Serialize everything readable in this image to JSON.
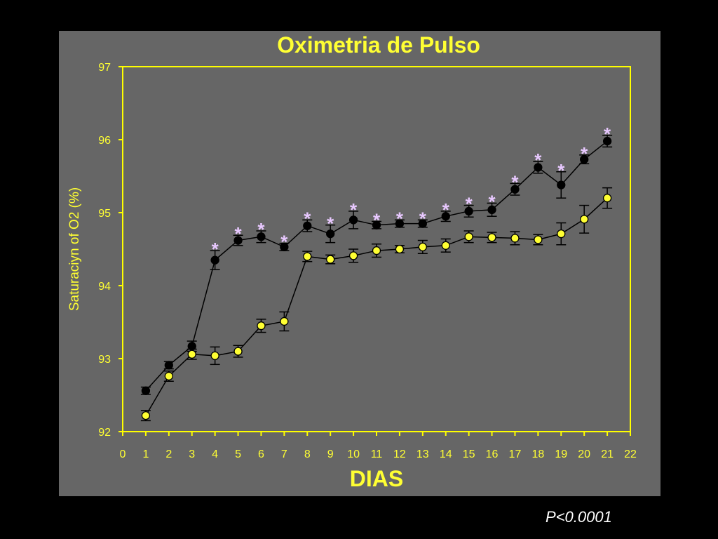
{
  "chart_data": {
    "type": "line",
    "title": "Oximetria de Pulso",
    "xlabel": "DIAS",
    "ylabel": "Saturaciyn of O2 (%)",
    "xlim": [
      0,
      22
    ],
    "ylim": [
      92,
      97
    ],
    "x_ticks": [
      "0",
      "1",
      "2",
      "3",
      "4",
      "5",
      "6",
      "7",
      "8",
      "9",
      "10",
      "11",
      "12",
      "13",
      "14",
      "15",
      "16",
      "17",
      "18",
      "19",
      "20",
      "21",
      "22"
    ],
    "y_ticks": [
      "92",
      "93",
      "94",
      "95",
      "96",
      "97"
    ],
    "grid": false,
    "legend": "none",
    "colors": {
      "text": "#ffff33",
      "axis": "#ffff00",
      "series_black": "#000000",
      "series_yellow": "#ffff33",
      "asterisk": "#e8c8ff",
      "panel": "#666666"
    },
    "series": [
      {
        "x": [
          1,
          2,
          3,
          4,
          5,
          6,
          7,
          8,
          9,
          10,
          11,
          12,
          13,
          14,
          15,
          16,
          17,
          18,
          19,
          20,
          21
        ],
        "values": [
          92.56,
          92.91,
          93.17,
          94.35,
          94.62,
          94.67,
          94.53,
          94.82,
          94.71,
          94.9,
          94.83,
          94.85,
          94.85,
          94.95,
          95.02,
          95.04,
          95.32,
          95.62,
          95.38,
          95.73,
          95.98
        ],
        "error": [
          0.05,
          0.05,
          0.07,
          0.13,
          0.07,
          0.08,
          0.05,
          0.08,
          0.12,
          0.12,
          0.05,
          0.05,
          0.05,
          0.07,
          0.08,
          0.09,
          0.08,
          0.08,
          0.18,
          0.06,
          0.08
        ],
        "marker_color": "#000000"
      },
      {
        "x": [
          1,
          2,
          3,
          4,
          5,
          6,
          7,
          8,
          9,
          10,
          11,
          12,
          13,
          14,
          15,
          16,
          17,
          18,
          19,
          20,
          21
        ],
        "values": [
          92.22,
          92.76,
          93.06,
          93.04,
          93.1,
          93.45,
          93.51,
          94.4,
          94.36,
          94.41,
          94.48,
          94.5,
          94.53,
          94.55,
          94.67,
          94.66,
          94.65,
          94.63,
          94.71,
          94.91,
          95.2
        ],
        "error": [
          0.07,
          0.07,
          0.07,
          0.12,
          0.08,
          0.09,
          0.13,
          0.07,
          0.06,
          0.09,
          0.09,
          0.05,
          0.09,
          0.09,
          0.08,
          0.07,
          0.09,
          0.07,
          0.15,
          0.19,
          0.14
        ],
        "marker_color": "#ffff33"
      }
    ],
    "annotations": {
      "symbol": "*",
      "x": [
        4,
        5,
        6,
        7,
        8,
        9,
        10,
        11,
        12,
        13,
        14,
        15,
        16,
        17,
        18,
        19,
        20,
        21
      ]
    }
  },
  "footer": {
    "p_value": "P<0.0001"
  }
}
